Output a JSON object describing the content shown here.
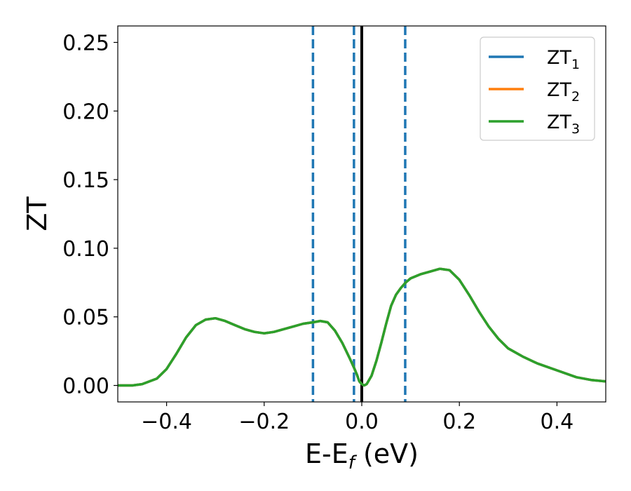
{
  "chart_data": {
    "type": "line",
    "xlabel": {
      "main": "E-E",
      "sub": "f",
      "tail": " (eV)"
    },
    "ylabel": "ZT",
    "xlim": [
      -0.5,
      0.5
    ],
    "ylim": [
      -0.012,
      0.262
    ],
    "xticks": [
      -0.4,
      -0.2,
      0.0,
      0.2,
      0.4
    ],
    "xtick_labels": [
      "−0.4",
      "−0.2",
      "0.0",
      "0.2",
      "0.4"
    ],
    "yticks": [
      0.0,
      0.05,
      0.1,
      0.15,
      0.2,
      0.25
    ],
    "ytick_labels": [
      "0.00",
      "0.05",
      "0.10",
      "0.15",
      "0.20",
      "0.25"
    ],
    "grid": false,
    "legend_position": "top-right",
    "colors": {
      "zt1": "#1f77b4",
      "zt2": "#ff7f0e",
      "zt3": "#2ca02c",
      "fermi": "#000000",
      "marker": "#1f77b4"
    },
    "reference_lines": {
      "solid": [
        0.0
      ],
      "dashed": [
        -0.1,
        -0.016,
        0.089
      ]
    },
    "x": [
      -0.5,
      -0.47,
      -0.45,
      -0.42,
      -0.4,
      -0.38,
      -0.36,
      -0.34,
      -0.32,
      -0.3,
      -0.28,
      -0.26,
      -0.24,
      -0.22,
      -0.2,
      -0.18,
      -0.16,
      -0.14,
      -0.12,
      -0.1,
      -0.085,
      -0.07,
      -0.055,
      -0.04,
      -0.025,
      -0.016,
      -0.01,
      -0.005,
      0.0,
      0.005,
      0.01,
      0.02,
      0.03,
      0.04,
      0.05,
      0.06,
      0.07,
      0.08,
      0.09,
      0.1,
      0.12,
      0.14,
      0.16,
      0.18,
      0.2,
      0.22,
      0.24,
      0.26,
      0.28,
      0.3,
      0.33,
      0.36,
      0.4,
      0.44,
      0.47,
      0.5
    ],
    "series": [
      {
        "name": "ZT",
        "sub": "1",
        "values": [
          0.0,
          0.0,
          0.001,
          0.005,
          0.012,
          0.023,
          0.035,
          0.044,
          0.048,
          0.049,
          0.047,
          0.044,
          0.041,
          0.039,
          0.038,
          0.039,
          0.041,
          0.043,
          0.045,
          0.046,
          0.047,
          0.046,
          0.04,
          0.031,
          0.02,
          0.013,
          0.008,
          0.003,
          0.001,
          0.0,
          0.001,
          0.007,
          0.018,
          0.031,
          0.045,
          0.058,
          0.066,
          0.071,
          0.075,
          0.078,
          0.081,
          0.083,
          0.085,
          0.084,
          0.077,
          0.066,
          0.054,
          0.043,
          0.034,
          0.027,
          0.021,
          0.016,
          0.011,
          0.006,
          0.004,
          0.003
        ]
      },
      {
        "name": "ZT",
        "sub": "2",
        "values": [
          0.0,
          0.0,
          0.001,
          0.005,
          0.012,
          0.023,
          0.035,
          0.044,
          0.048,
          0.049,
          0.047,
          0.044,
          0.041,
          0.039,
          0.038,
          0.039,
          0.041,
          0.043,
          0.045,
          0.046,
          0.047,
          0.046,
          0.04,
          0.031,
          0.02,
          0.013,
          0.008,
          0.003,
          0.001,
          0.0,
          0.001,
          0.007,
          0.018,
          0.031,
          0.045,
          0.058,
          0.066,
          0.071,
          0.075,
          0.078,
          0.081,
          0.083,
          0.085,
          0.084,
          0.077,
          0.066,
          0.054,
          0.043,
          0.034,
          0.027,
          0.021,
          0.016,
          0.011,
          0.006,
          0.004,
          0.003
        ]
      },
      {
        "name": "ZT",
        "sub": "3",
        "values": [
          0.0,
          0.0,
          0.001,
          0.005,
          0.012,
          0.023,
          0.035,
          0.044,
          0.048,
          0.049,
          0.047,
          0.044,
          0.041,
          0.039,
          0.038,
          0.039,
          0.041,
          0.043,
          0.045,
          0.046,
          0.047,
          0.046,
          0.04,
          0.031,
          0.02,
          0.013,
          0.008,
          0.003,
          0.001,
          0.0,
          0.001,
          0.007,
          0.018,
          0.031,
          0.045,
          0.058,
          0.066,
          0.071,
          0.075,
          0.078,
          0.081,
          0.083,
          0.085,
          0.084,
          0.077,
          0.066,
          0.054,
          0.043,
          0.034,
          0.027,
          0.021,
          0.016,
          0.011,
          0.006,
          0.004,
          0.003
        ]
      }
    ]
  }
}
